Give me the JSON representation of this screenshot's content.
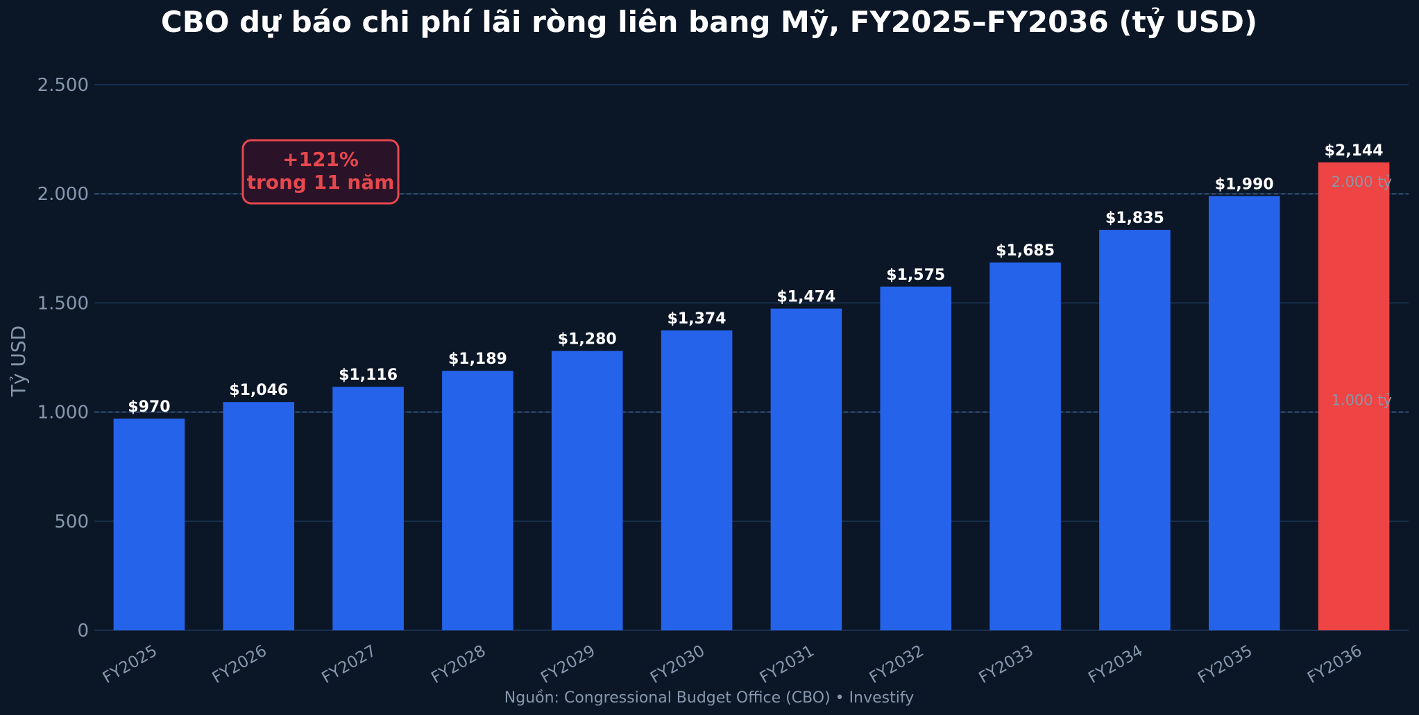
{
  "chart_data": {
    "type": "bar",
    "title": "CBO dự báo chi phí lãi ròng liên bang Mỹ, FY2025–FY2036 (tỷ USD)",
    "ylabel": "Tỷ USD",
    "xlabel": "",
    "categories": [
      "FY2025",
      "FY2026",
      "FY2027",
      "FY2028",
      "FY2029",
      "FY2030",
      "FY2031",
      "FY2032",
      "FY2033",
      "FY2034",
      "FY2035",
      "FY2036"
    ],
    "values": [
      970,
      1046,
      1116,
      1189,
      1280,
      1374,
      1474,
      1575,
      1685,
      1835,
      1990,
      2144
    ],
    "value_labels": [
      "$970",
      "$1,046",
      "$1,116",
      "$1,189",
      "$1,280",
      "$1,374",
      "$1,474",
      "$1,575",
      "$1,685",
      "$1,835",
      "$1,990",
      "$2,144"
    ],
    "ylim": [
      0,
      2500
    ],
    "yticks": [
      0,
      500,
      1000,
      1500,
      2000,
      2500
    ],
    "ytick_labels": [
      "0",
      "500",
      "1.000",
      "1.500",
      "2.000",
      "2.500"
    ],
    "grid": true,
    "reference_lines": [
      {
        "value": 1000,
        "label": "1.000 tỷ"
      },
      {
        "value": 2000,
        "label": "2.000 tỷ"
      }
    ],
    "annotation": {
      "line1": "+121%",
      "line2": "trong 11 năm"
    },
    "source": "Nguồn: Congressional Budget Office (CBO) • Investify",
    "colors": {
      "background": "#0b1627",
      "bar": "#2563eb",
      "highlight_bar": "#ef4444",
      "gridline": "#1e3a5f",
      "annotation": "#e5484d",
      "annotation_fill": "#2a1228"
    },
    "highlight_index": 11
  }
}
